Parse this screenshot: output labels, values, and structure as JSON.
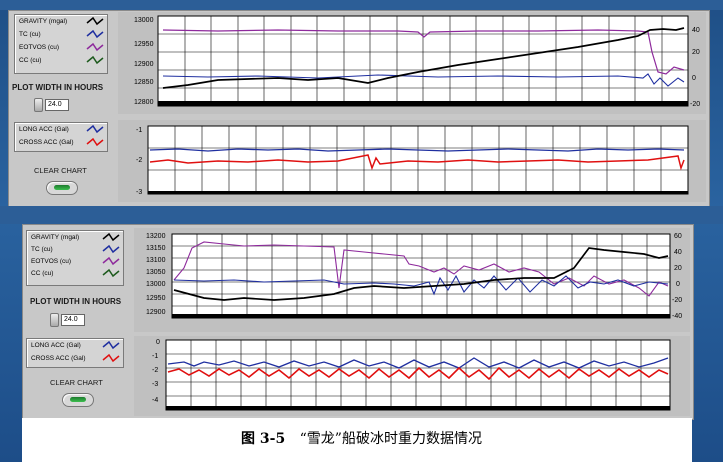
{
  "top": {
    "legend": [
      {
        "label": "GRAVITY (mgal)",
        "color": "#000000"
      },
      {
        "label": "TC (cu)",
        "color": "#1f2fa0"
      },
      {
        "label": "EOTVOS (cu)",
        "color": "#8e2a9c"
      },
      {
        "label": "CC (cu)",
        "color": "#1d5a1d"
      }
    ],
    "plot_width_label": "PLOT WIDTH IN HOURS",
    "plot_width_value": "24.0",
    "acc_legend": [
      {
        "label": "LONG ACC (Gal)",
        "color": "#1f2fa0"
      },
      {
        "label": "CROSS ACC (Gal)",
        "color": "#e01010"
      }
    ],
    "clear_label": "CLEAR CHART",
    "gravity_ticks": [
      "13000",
      "12950",
      "12900",
      "12850",
      "12800"
    ],
    "right_ticks": [
      "40",
      "20",
      "0",
      "-20"
    ],
    "acc_ticks": [
      "-1",
      "-2",
      "-3"
    ]
  },
  "bottom": {
    "legend": [
      {
        "label": "GRAVITY (mgal)",
        "color": "#000000"
      },
      {
        "label": "TC (cu)",
        "color": "#1f2fa0"
      },
      {
        "label": "EOTVOS (cu)",
        "color": "#8e2a9c"
      },
      {
        "label": "CC (cu)",
        "color": "#1d5a1d"
      }
    ],
    "plot_width_label": "PLOT WIDTH IN HOURS",
    "plot_width_value": "24.0",
    "acc_legend": [
      {
        "label": "LONG ACC (Gal)",
        "color": "#1f2fa0"
      },
      {
        "label": "CROSS ACC (Gal)",
        "color": "#e01010"
      }
    ],
    "clear_label": "CLEAR CHART",
    "gravity_ticks": [
      "13200",
      "13150",
      "13100",
      "13050",
      "13000",
      "12950",
      "12900"
    ],
    "right_ticks": [
      "60",
      "40",
      "20",
      "0",
      "-20",
      "-40"
    ],
    "acc_ticks": [
      "0",
      "-1",
      "-2",
      "-3",
      "-4"
    ]
  },
  "caption": {
    "fig": "图 3-5",
    "text": "“雪龙”船破冰时重力数据情况"
  }
}
